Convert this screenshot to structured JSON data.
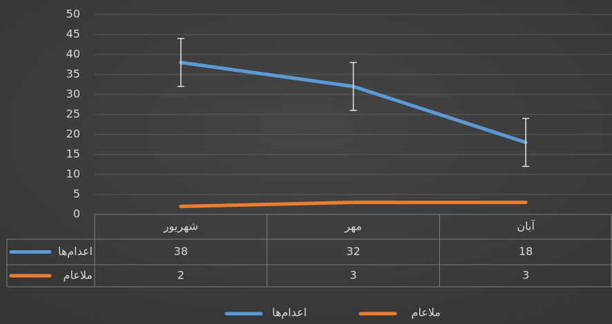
{
  "chart_data": {
    "type": "line",
    "categories": [
      "شهریور",
      "مهر",
      "آبان"
    ],
    "series": [
      {
        "name": "اعدام‌ها",
        "color": "#5b9bd5",
        "values": [
          38,
          32,
          18
        ],
        "errors": [
          6,
          6,
          6
        ]
      },
      {
        "name": "ملاعام",
        "color": "#ed7d31",
        "values": [
          2,
          3,
          3
        ]
      }
    ],
    "ylim": [
      0,
      50
    ],
    "yticks": [
      0,
      5,
      10,
      15,
      20,
      25,
      30,
      35,
      40,
      45,
      50
    ],
    "grid": true,
    "data_table": true,
    "legend": "bottom"
  }
}
